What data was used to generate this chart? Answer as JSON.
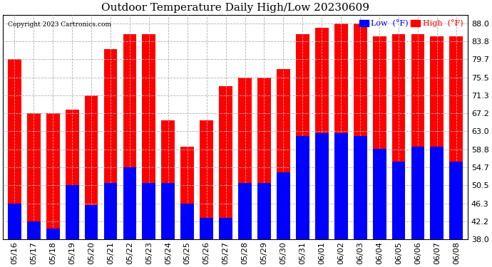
{
  "title": "Outdoor Temperature Daily High/Low 20230609",
  "copyright": "Copyright 2023 Cartronics.com",
  "dates": [
    "05/16",
    "05/17",
    "05/18",
    "05/19",
    "05/20",
    "05/21",
    "05/22",
    "05/23",
    "05/24",
    "05/25",
    "05/26",
    "05/27",
    "05/28",
    "05/29",
    "05/30",
    "05/31",
    "06/01",
    "06/02",
    "06/03",
    "06/04",
    "06/05",
    "06/06",
    "06/07",
    "06/08"
  ],
  "highs": [
    79.7,
    67.2,
    67.2,
    68.0,
    71.3,
    82.0,
    85.5,
    85.5,
    65.5,
    59.5,
    65.5,
    73.5,
    75.5,
    75.5,
    77.5,
    85.5,
    87.0,
    88.0,
    88.0,
    85.0,
    85.5,
    85.5,
    85.0,
    85.0
  ],
  "lows": [
    46.3,
    42.2,
    40.5,
    50.5,
    46.0,
    51.0,
    54.7,
    51.0,
    51.0,
    46.3,
    43.0,
    43.0,
    51.0,
    51.0,
    53.5,
    62.0,
    62.5,
    62.5,
    62.0,
    59.0,
    56.0,
    59.5,
    59.5,
    56.0
  ],
  "ylim": [
    38.0,
    90.0
  ],
  "yticks": [
    38.0,
    42.2,
    46.3,
    50.5,
    54.7,
    58.8,
    63.0,
    67.2,
    71.3,
    75.5,
    79.7,
    83.8,
    88.0
  ],
  "high_color": "#ff0000",
  "low_color": "#0000ff",
  "background_color": "#ffffff",
  "grid_color": "#b0b0b0",
  "title_fontsize": 11,
  "tick_fontsize": 8,
  "bar_width": 0.7,
  "ymin": 38.0
}
